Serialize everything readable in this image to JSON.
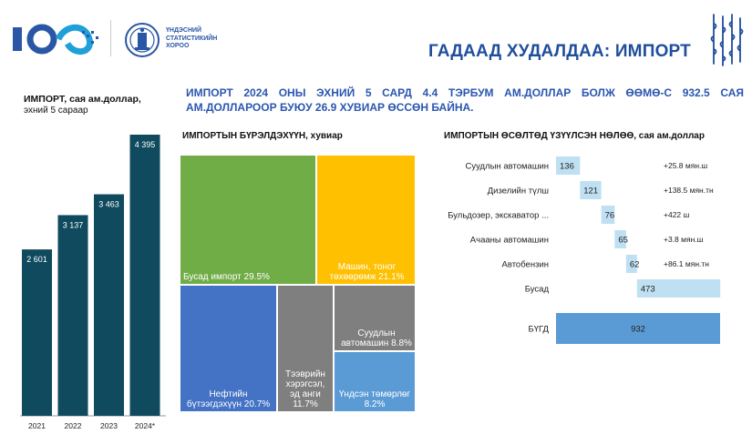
{
  "header": {
    "logo_text": [
      "ҮНДЭСНИЙ",
      "СТАТИСТИКИЙН",
      "ХОРОО"
    ],
    "page_title": "ГАДААД ХУДАЛДАА: ИМПОРТ"
  },
  "headline": "ИМПОРТ 2024 ОНЫ ЭХНИЙ 5 САРД 4.4 ТЭРБУМ АМ.ДОЛЛАР БОЛЖ ӨӨМӨ-С 932.5 САЯ АМ.ДОЛЛАРООР БУЮУ 26.9 ХУВИАР ӨССӨН БАЙНА.",
  "colors": {
    "bar": "#0f4a5e",
    "title_blue": "#1f4e9c",
    "contrib_light": "#bfe0f2",
    "contrib_total": "#5b9bd5"
  },
  "chart_data": [
    {
      "type": "bar",
      "title": "ИМПОРТ, сая ам.доллар,",
      "subtitle": "эхний 5 сараар",
      "categories": [
        "2021",
        "2022",
        "2023",
        "2024*"
      ],
      "values": [
        2601,
        3137,
        3463,
        4395
      ],
      "value_labels": [
        "2 601",
        "3 137",
        "3 463",
        "4 395"
      ],
      "ylim": [
        0,
        4395
      ],
      "grid": false
    },
    {
      "type": "treemap",
      "title": "ИМПОРТЫН БҮРЭЛДЭХҮҮН, хувиар",
      "items": [
        {
          "label": "Бусад импорт",
          "value": 29.5,
          "text": "Бусад импорт 29.5%",
          "color": "#70ad47"
        },
        {
          "label": "Машин, тоног төхөөрөмж",
          "value": 21.1,
          "text": "Машин, тоног төхөөрөмж 21.1%",
          "color": "#ffc000"
        },
        {
          "label": "Нефтийн бүтээгдэхүүн",
          "value": 20.7,
          "text": "Нефтийн бүтээгдэхүүн 20.7%",
          "color": "#4472c4"
        },
        {
          "label": "Тээврийн хэрэгсэл, эд анги",
          "value": 11.7,
          "text": "Тээврийн хэрэгсэл, эд анги 11.7%",
          "color": "#7f7f7f"
        },
        {
          "label": "Суудлын автомашин",
          "value": 8.8,
          "text": "Суудлын автомашин 8.8%",
          "color": "#7f7f7f"
        },
        {
          "label": "Үндсэн төмөрлөг",
          "value": 8.2,
          "text": "Үндсэн төмөрлөг 8.2%",
          "color": "#5b9bd5"
        }
      ]
    },
    {
      "type": "waterfall",
      "title": "ИМПОРТЫН ӨСӨЛТӨД ҮЗҮҮЛСЭН НӨЛӨӨ, сая ам.доллар",
      "categories": [
        "Суудлын автомашин",
        "Дизелийн түлш",
        "Бульдозер, экскаватор ...",
        "Ачааны автомашин",
        "Автобензин",
        "Бусад",
        "БҮГД"
      ],
      "values": [
        136,
        121,
        76,
        65,
        62,
        473,
        932
      ],
      "annotations": [
        "+25.8 мян.ш",
        "+138.5 мян.тн",
        "+422 ш",
        "+3.8 мян.ш",
        "+86.1 мян.тн",
        "",
        ""
      ]
    }
  ]
}
